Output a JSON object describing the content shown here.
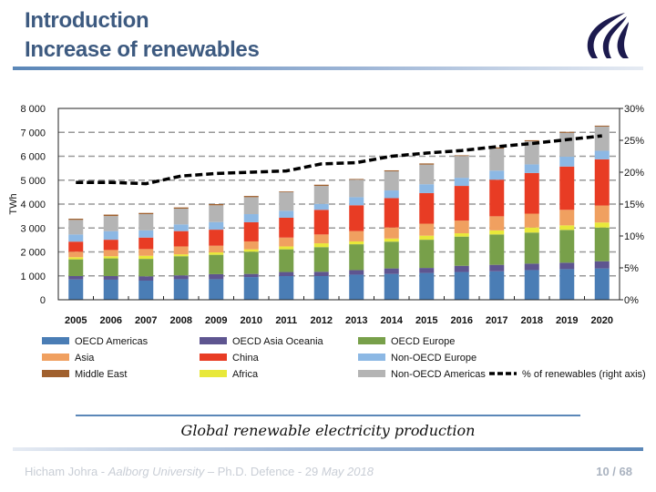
{
  "slide": {
    "title_line1": "Introduction",
    "title_line2": "Increase of renewables",
    "caption": "Global renewable electricity production",
    "footer_author": "Hicham Johra - ",
    "footer_institution": "Aalborg University",
    "footer_event": " – Ph.D. Defence - 29 ",
    "footer_date": "May 2018",
    "page_number": "10 / 68",
    "logo_icon": "aalborg-university-logo"
  },
  "chart_data": {
    "type": "bar",
    "stacked": true,
    "title": "",
    "xlabel": "",
    "ylabel": "TWh",
    "ylim": [
      0,
      8000
    ],
    "y_ticks": [
      "0",
      "1 000",
      "2 000",
      "3 000",
      "4 000",
      "5 000",
      "6 000",
      "7 000",
      "8 000"
    ],
    "y2lim": [
      0,
      30
    ],
    "y2_ticks": [
      "0%",
      "5%",
      "10%",
      "15%",
      "20%",
      "25%",
      "30%"
    ],
    "grid": "horizontal dashed",
    "legend_placement": "bottom",
    "categories": [
      "2005",
      "2006",
      "2007",
      "2008",
      "2009",
      "2010",
      "2011",
      "2012",
      "2013",
      "2014",
      "2015",
      "2016",
      "2017",
      "2018",
      "2019",
      "2020"
    ],
    "series": [
      {
        "name": "OECD Americas",
        "color": "#4a7db5",
        "values": [
          850,
          840,
          800,
          860,
          860,
          950,
          990,
          990,
          1050,
          1080,
          1120,
          1160,
          1190,
          1240,
          1280,
          1310
        ]
      },
      {
        "name": "OECD Asia Oceania",
        "color": "#5e5590",
        "values": [
          140,
          150,
          180,
          160,
          210,
          130,
          170,
          180,
          190,
          230,
          210,
          260,
          270,
          270,
          270,
          300
        ]
      },
      {
        "name": "OECD Europe",
        "color": "#78a04a",
        "values": [
          700,
          740,
          730,
          800,
          810,
          930,
          950,
          1030,
          1080,
          1120,
          1180,
          1220,
          1270,
          1300,
          1370,
          1410
        ]
      },
      {
        "name": "Africa",
        "color": "#e8e83a",
        "values": [
          90,
          90,
          130,
          80,
          100,
          100,
          120,
          160,
          120,
          130,
          170,
          140,
          170,
          210,
          190,
          210
        ]
      },
      {
        "name": "Asia",
        "color": "#f0a060",
        "values": [
          230,
          260,
          280,
          330,
          280,
          330,
          370,
          370,
          430,
          460,
          500,
          530,
          590,
          580,
          650,
          710
        ]
      },
      {
        "name": "China",
        "color": "#e83c24",
        "values": [
          420,
          430,
          480,
          640,
          670,
          800,
          830,
          1030,
          1080,
          1230,
          1280,
          1450,
          1530,
          1700,
          1810,
          1930
        ]
      },
      {
        "name": "Non-OECD Europe",
        "color": "#8cb8e4",
        "values": [
          300,
          360,
          300,
          280,
          320,
          340,
          290,
          250,
          340,
          320,
          370,
          340,
          380,
          360,
          410,
          360
        ]
      },
      {
        "name": "Non-OECD Americas",
        "color": "#b4b4b4",
        "values": [
          610,
          630,
          680,
          660,
          700,
          710,
          780,
          750,
          730,
          800,
          820,
          910,
          920,
          970,
          1000,
          1010
        ]
      },
      {
        "name": "Middle East",
        "color": "#a0602e",
        "values": [
          50,
          60,
          50,
          50,
          50,
          50,
          30,
          50,
          30,
          40,
          50,
          30,
          50,
          40,
          40,
          40
        ]
      }
    ],
    "line_series": {
      "name": "% of renewables (right axis)",
      "axis": "right",
      "color": "#000000",
      "style": "dashed",
      "values": [
        18.4,
        18.4,
        18.2,
        19.4,
        19.8,
        20.0,
        20.2,
        21.3,
        21.5,
        22.5,
        23.0,
        23.4,
        24.0,
        24.5,
        25.1,
        25.7
      ]
    },
    "legend_order": [
      "OECD Americas",
      "OECD Asia Oceania",
      "OECD Europe",
      "Asia",
      "China",
      "Non-OECD Europe",
      "Middle East",
      "Africa",
      "Non-OECD Americas",
      "% of renewables (right axis)"
    ]
  }
}
